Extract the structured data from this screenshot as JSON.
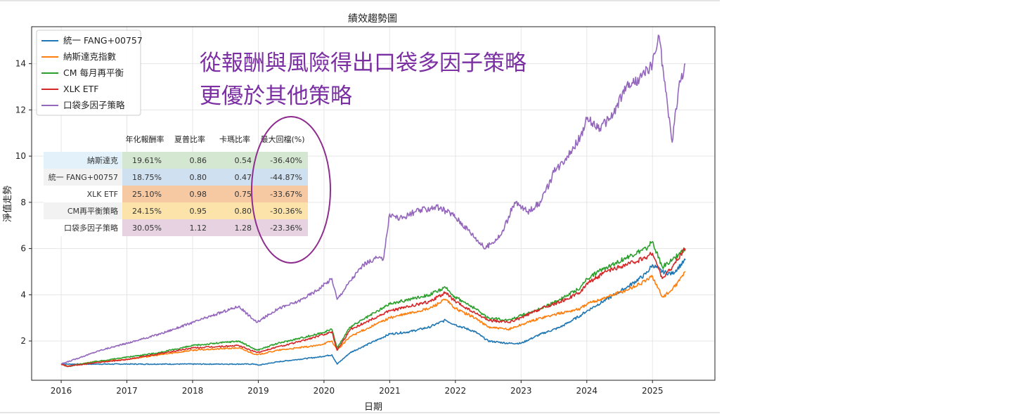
{
  "chart_data": {
    "type": "line",
    "title": "績效趨勢圖",
    "xlabel": "日期",
    "ylabel": "淨值走勢",
    "xlim": [
      2015.55,
      2025.95
    ],
    "ylim": [
      0.3,
      15.6
    ],
    "x_ticks": [
      "2016",
      "2017",
      "2018",
      "2019",
      "2020",
      "2021",
      "2022",
      "2023",
      "2024",
      "2025"
    ],
    "y_ticks": [
      "2",
      "4",
      "6",
      "8",
      "10",
      "12",
      "14"
    ],
    "grid": true,
    "legend_position": "top-left",
    "series": [
      {
        "name": "統一 FANG+00757",
        "color": "#1f77b4",
        "x": [
          2016.0,
          2016.5,
          2017.0,
          2017.5,
          2018.0,
          2018.5,
          2018.95,
          2019.0,
          2019.3,
          2019.6,
          2019.9,
          2020.12,
          2020.2,
          2020.4,
          2020.7,
          2021.0,
          2021.3,
          2021.6,
          2021.85,
          2022.0,
          2022.3,
          2022.5,
          2022.8,
          2023.0,
          2023.3,
          2023.6,
          2023.9,
          2024.0,
          2024.3,
          2024.6,
          2024.9,
          2025.0,
          2025.15,
          2025.3,
          2025.5
        ],
        "values": [
          1.0,
          1.0,
          1.0,
          1.0,
          1.0,
          1.0,
          1.0,
          0.95,
          1.1,
          1.2,
          1.3,
          1.4,
          1.0,
          1.5,
          1.9,
          2.3,
          2.4,
          2.6,
          2.9,
          2.7,
          2.4,
          2.0,
          1.9,
          1.9,
          2.3,
          2.6,
          3.1,
          3.3,
          3.8,
          4.3,
          4.9,
          5.3,
          5.0,
          4.9,
          5.5
        ]
      },
      {
        "name": "納斯達克指數",
        "color": "#ff7f0e",
        "x": [
          2016.0,
          2016.1,
          2016.5,
          2017.0,
          2017.5,
          2018.0,
          2018.7,
          2018.98,
          2019.3,
          2019.6,
          2019.9,
          2020.12,
          2020.2,
          2020.4,
          2020.7,
          2021.0,
          2021.3,
          2021.6,
          2021.85,
          2022.0,
          2022.3,
          2022.5,
          2022.8,
          2023.0,
          2023.3,
          2023.6,
          2023.9,
          2024.0,
          2024.3,
          2024.6,
          2024.9,
          2025.0,
          2025.15,
          2025.3,
          2025.5
        ],
        "values": [
          1.0,
          0.9,
          1.1,
          1.2,
          1.4,
          1.6,
          1.7,
          1.4,
          1.6,
          1.7,
          1.8,
          2.0,
          1.6,
          2.2,
          2.6,
          3.0,
          3.2,
          3.4,
          3.8,
          3.4,
          3.0,
          2.6,
          2.5,
          2.7,
          3.0,
          3.2,
          3.4,
          3.6,
          3.9,
          4.2,
          4.6,
          4.8,
          3.9,
          4.2,
          5.0
        ]
      },
      {
        "name": "CM 每月再平衡",
        "color": "#2ca02c",
        "x": [
          2016.0,
          2016.1,
          2016.5,
          2017.0,
          2017.5,
          2018.0,
          2018.7,
          2018.98,
          2019.3,
          2019.6,
          2019.9,
          2020.12,
          2020.2,
          2020.4,
          2020.7,
          2021.0,
          2021.3,
          2021.6,
          2021.85,
          2022.0,
          2022.3,
          2022.5,
          2022.8,
          2023.0,
          2023.3,
          2023.6,
          2023.9,
          2024.0,
          2024.3,
          2024.6,
          2024.9,
          2025.0,
          2025.15,
          2025.3,
          2025.5
        ],
        "values": [
          1.0,
          0.9,
          1.1,
          1.3,
          1.5,
          1.8,
          2.0,
          1.6,
          1.9,
          2.1,
          2.3,
          2.5,
          1.7,
          2.6,
          3.1,
          3.6,
          3.8,
          4.0,
          4.3,
          3.9,
          3.4,
          3.0,
          2.9,
          3.1,
          3.4,
          3.8,
          4.3,
          4.7,
          5.2,
          5.6,
          6.0,
          6.3,
          5.2,
          5.5,
          6.0
        ]
      },
      {
        "name": "XLK ETF",
        "color": "#d62728",
        "x": [
          2016.0,
          2016.1,
          2016.5,
          2017.0,
          2017.5,
          2018.0,
          2018.7,
          2018.98,
          2019.3,
          2019.6,
          2019.9,
          2020.12,
          2020.2,
          2020.4,
          2020.7,
          2021.0,
          2021.3,
          2021.6,
          2021.85,
          2022.0,
          2022.3,
          2022.5,
          2022.8,
          2023.0,
          2023.3,
          2023.6,
          2023.9,
          2024.0,
          2024.3,
          2024.6,
          2024.9,
          2025.0,
          2025.15,
          2025.3,
          2025.5
        ],
        "values": [
          1.0,
          0.9,
          1.05,
          1.2,
          1.45,
          1.7,
          1.8,
          1.5,
          1.75,
          1.95,
          2.2,
          2.4,
          1.6,
          2.5,
          2.9,
          3.3,
          3.5,
          3.7,
          4.1,
          3.7,
          3.2,
          2.9,
          2.8,
          3.0,
          3.4,
          3.7,
          4.1,
          4.5,
          5.0,
          5.3,
          5.6,
          5.8,
          4.7,
          5.2,
          6.0
        ]
      },
      {
        "name": "口袋多因子策略",
        "color": "#9467bd",
        "x": [
          2016.0,
          2016.3,
          2016.6,
          2017.0,
          2017.5,
          2018.0,
          2018.3,
          2018.7,
          2018.98,
          2019.3,
          2019.6,
          2019.9,
          2020.12,
          2020.2,
          2020.4,
          2020.6,
          2020.8,
          2020.9,
          2021.0,
          2021.15,
          2021.4,
          2021.7,
          2021.95,
          2022.2,
          2022.45,
          2022.7,
          2022.9,
          2023.1,
          2023.3,
          2023.5,
          2023.7,
          2023.9,
          2024.0,
          2024.2,
          2024.4,
          2024.6,
          2024.8,
          2025.0,
          2025.1,
          2025.2,
          2025.3,
          2025.4,
          2025.5
        ],
        "values": [
          1.0,
          1.3,
          1.6,
          1.9,
          2.3,
          2.8,
          3.1,
          3.5,
          2.8,
          3.4,
          3.7,
          4.2,
          4.7,
          3.8,
          4.6,
          5.3,
          5.6,
          5.5,
          7.5,
          7.3,
          7.6,
          7.8,
          7.5,
          6.8,
          6.0,
          6.6,
          8.0,
          7.6,
          8.0,
          9.3,
          10.0,
          10.8,
          11.6,
          11.2,
          11.8,
          13.0,
          13.3,
          14.0,
          15.2,
          12.8,
          10.6,
          13.0,
          14.0
        ]
      }
    ]
  },
  "table": {
    "headers": [
      "年化報酬率",
      "夏普比率",
      "卡瑪比率",
      "最大回檔(%)"
    ],
    "rows": [
      {
        "label": "納斯達克",
        "cells": [
          "19.61%",
          "0.86",
          "0.54",
          "-36.40%"
        ]
      },
      {
        "label": "統一 FANG+00757",
        "cells": [
          "18.75%",
          "0.80",
          "0.47",
          "-44.87%"
        ]
      },
      {
        "label": "XLK ETF",
        "cells": [
          "25.10%",
          "0.98",
          "0.75",
          "-33.67%"
        ]
      },
      {
        "label": "CM再平衡策略",
        "cells": [
          "24.15%",
          "0.95",
          "0.80",
          "-30.36%"
        ]
      },
      {
        "label": "口袋多因子策略",
        "cells": [
          "30.05%",
          "1.12",
          "1.28",
          "-23.36%"
        ]
      }
    ],
    "row_colors": [
      "#d4e8d1",
      "#cfe0f1",
      "#f7c9a3",
      "#fbe3a9",
      "#e6d2e1"
    ],
    "label_colors": [
      "#e2f1fa",
      "#f2f2f2",
      "#ffffff",
      "#f2f2f2",
      "#ffffff"
    ]
  },
  "annotation": {
    "lines": [
      "從報酬與風險得出口袋多因子策略",
      "更優於其他策略"
    ],
    "color": "#7b2fa3"
  }
}
